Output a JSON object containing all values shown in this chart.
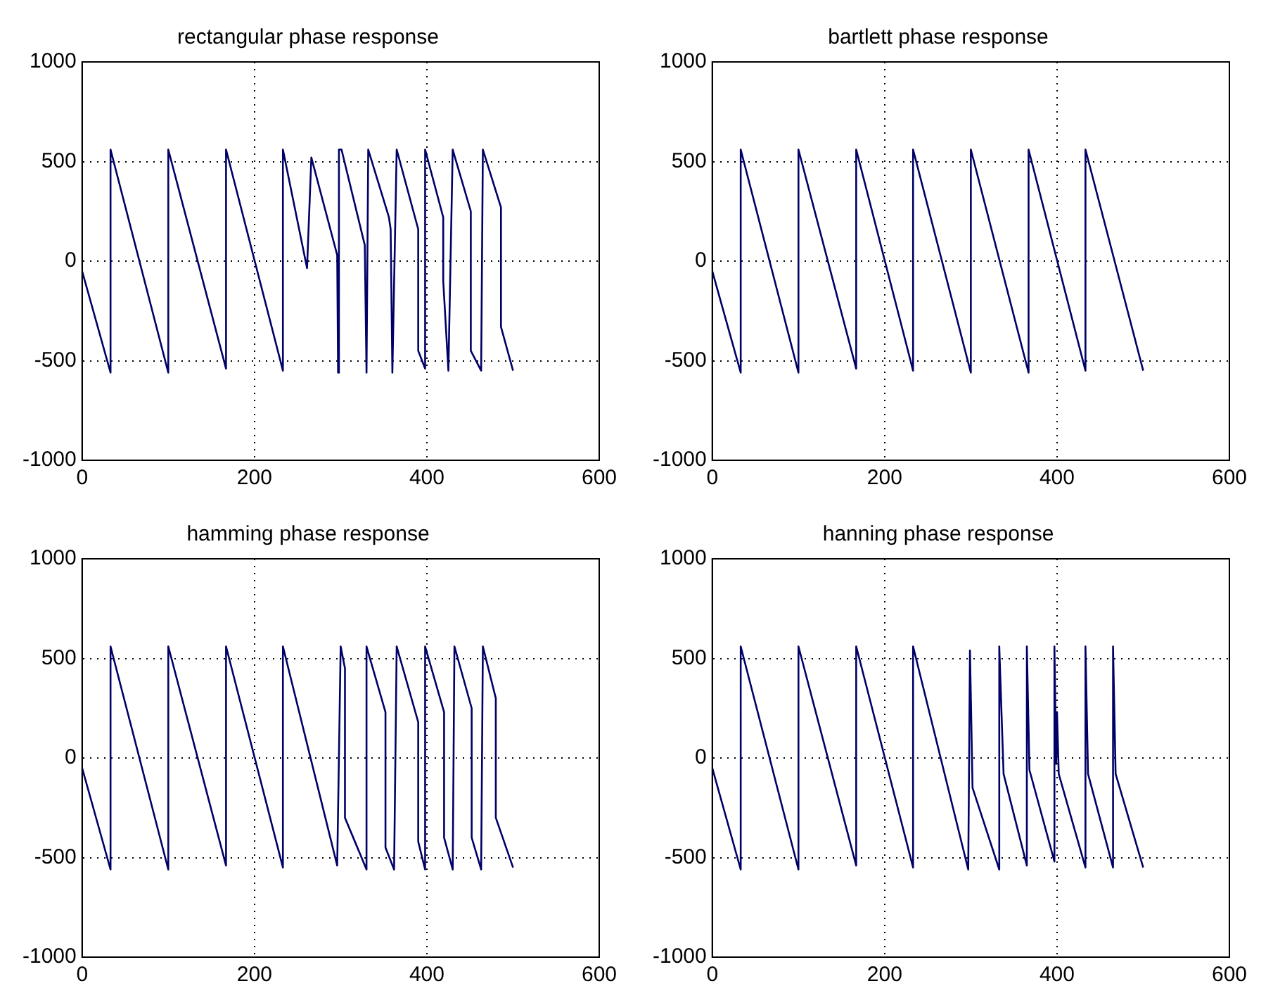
{
  "chart_data": [
    {
      "type": "line",
      "title": "rectangular phase response",
      "xlim": [
        0,
        600
      ],
      "ylim": [
        -1000,
        1000
      ],
      "xticks": [
        0,
        200,
        400,
        600
      ],
      "yticks": [
        -1000,
        -500,
        0,
        500,
        1000
      ],
      "grid": true,
      "line_style": "solid",
      "marker": "none",
      "legend": false,
      "series": [
        {
          "color": "#000066",
          "x": [
            0,
            33,
            33,
            100,
            100,
            167,
            167,
            233,
            233,
            261,
            266,
            296,
            297,
            298,
            301,
            328,
            330,
            332,
            356,
            358,
            360,
            365,
            390,
            390,
            398,
            398,
            419,
            419,
            425,
            430,
            451,
            451,
            463,
            465,
            486,
            486,
            500
          ],
          "values": [
            -50,
            -560,
            560,
            -560,
            560,
            -540,
            560,
            -550,
            560,
            -35,
            520,
            30,
            -560,
            560,
            560,
            80,
            -560,
            560,
            220,
            160,
            -560,
            560,
            160,
            -450,
            -540,
            560,
            220,
            -100,
            -550,
            560,
            250,
            -450,
            -550,
            560,
            270,
            -330,
            -550
          ]
        }
      ]
    },
    {
      "type": "line",
      "title": "bartlett phase response",
      "xlim": [
        0,
        600
      ],
      "ylim": [
        -1000,
        1000
      ],
      "xticks": [
        0,
        200,
        400,
        600
      ],
      "yticks": [
        -1000,
        -500,
        0,
        500,
        1000
      ],
      "grid": true,
      "line_style": "solid",
      "marker": "none",
      "legend": false,
      "series": [
        {
          "color": "#000066",
          "x": [
            0,
            33,
            33,
            100,
            100,
            167,
            167,
            233,
            233,
            300,
            300,
            367,
            367,
            433,
            433,
            500
          ],
          "values": [
            -50,
            -560,
            560,
            -560,
            560,
            -540,
            560,
            -550,
            560,
            -560,
            560,
            -560,
            560,
            -550,
            560,
            -550
          ]
        }
      ]
    },
    {
      "type": "line",
      "title": "hamming phase response",
      "xlim": [
        0,
        600
      ],
      "ylim": [
        -1000,
        1000
      ],
      "xticks": [
        0,
        200,
        400,
        600
      ],
      "yticks": [
        -1000,
        -500,
        0,
        500,
        1000
      ],
      "grid": true,
      "line_style": "solid",
      "marker": "none",
      "legend": false,
      "series": [
        {
          "color": "#000066",
          "x": [
            0,
            33,
            33,
            100,
            100,
            167,
            167,
            233,
            233,
            296,
            300,
            305,
            305,
            330,
            330,
            352,
            352,
            362,
            365,
            390,
            390,
            398,
            398,
            420,
            420,
            430,
            432,
            452,
            452,
            463,
            465,
            480,
            480,
            500
          ],
          "values": [
            -50,
            -560,
            560,
            -560,
            560,
            -540,
            560,
            -550,
            560,
            -540,
            560,
            450,
            -300,
            -560,
            560,
            230,
            -450,
            -560,
            560,
            180,
            -420,
            -560,
            560,
            230,
            -400,
            -560,
            560,
            250,
            -400,
            -560,
            560,
            300,
            -300,
            -550
          ]
        }
      ]
    },
    {
      "type": "line",
      "title": "hanning phase response",
      "xlim": [
        0,
        600
      ],
      "ylim": [
        -1000,
        1000
      ],
      "xticks": [
        0,
        200,
        400,
        600
      ],
      "yticks": [
        -1000,
        -500,
        0,
        500,
        1000
      ],
      "grid": true,
      "line_style": "solid",
      "marker": "none",
      "legend": false,
      "series": [
        {
          "color": "#000066",
          "x": [
            0,
            33,
            33,
            100,
            100,
            167,
            167,
            233,
            233,
            297,
            299,
            302,
            333,
            333,
            338,
            365,
            365,
            368,
            397,
            397,
            399,
            400,
            402,
            433,
            433,
            436,
            465,
            465,
            468,
            500
          ],
          "values": [
            -50,
            -560,
            560,
            -560,
            560,
            -540,
            560,
            -550,
            560,
            -560,
            540,
            -150,
            -560,
            560,
            -80,
            -540,
            560,
            -60,
            -520,
            560,
            -30,
            230,
            -80,
            -550,
            560,
            -80,
            -550,
            560,
            -80,
            -550
          ]
        }
      ]
    }
  ]
}
